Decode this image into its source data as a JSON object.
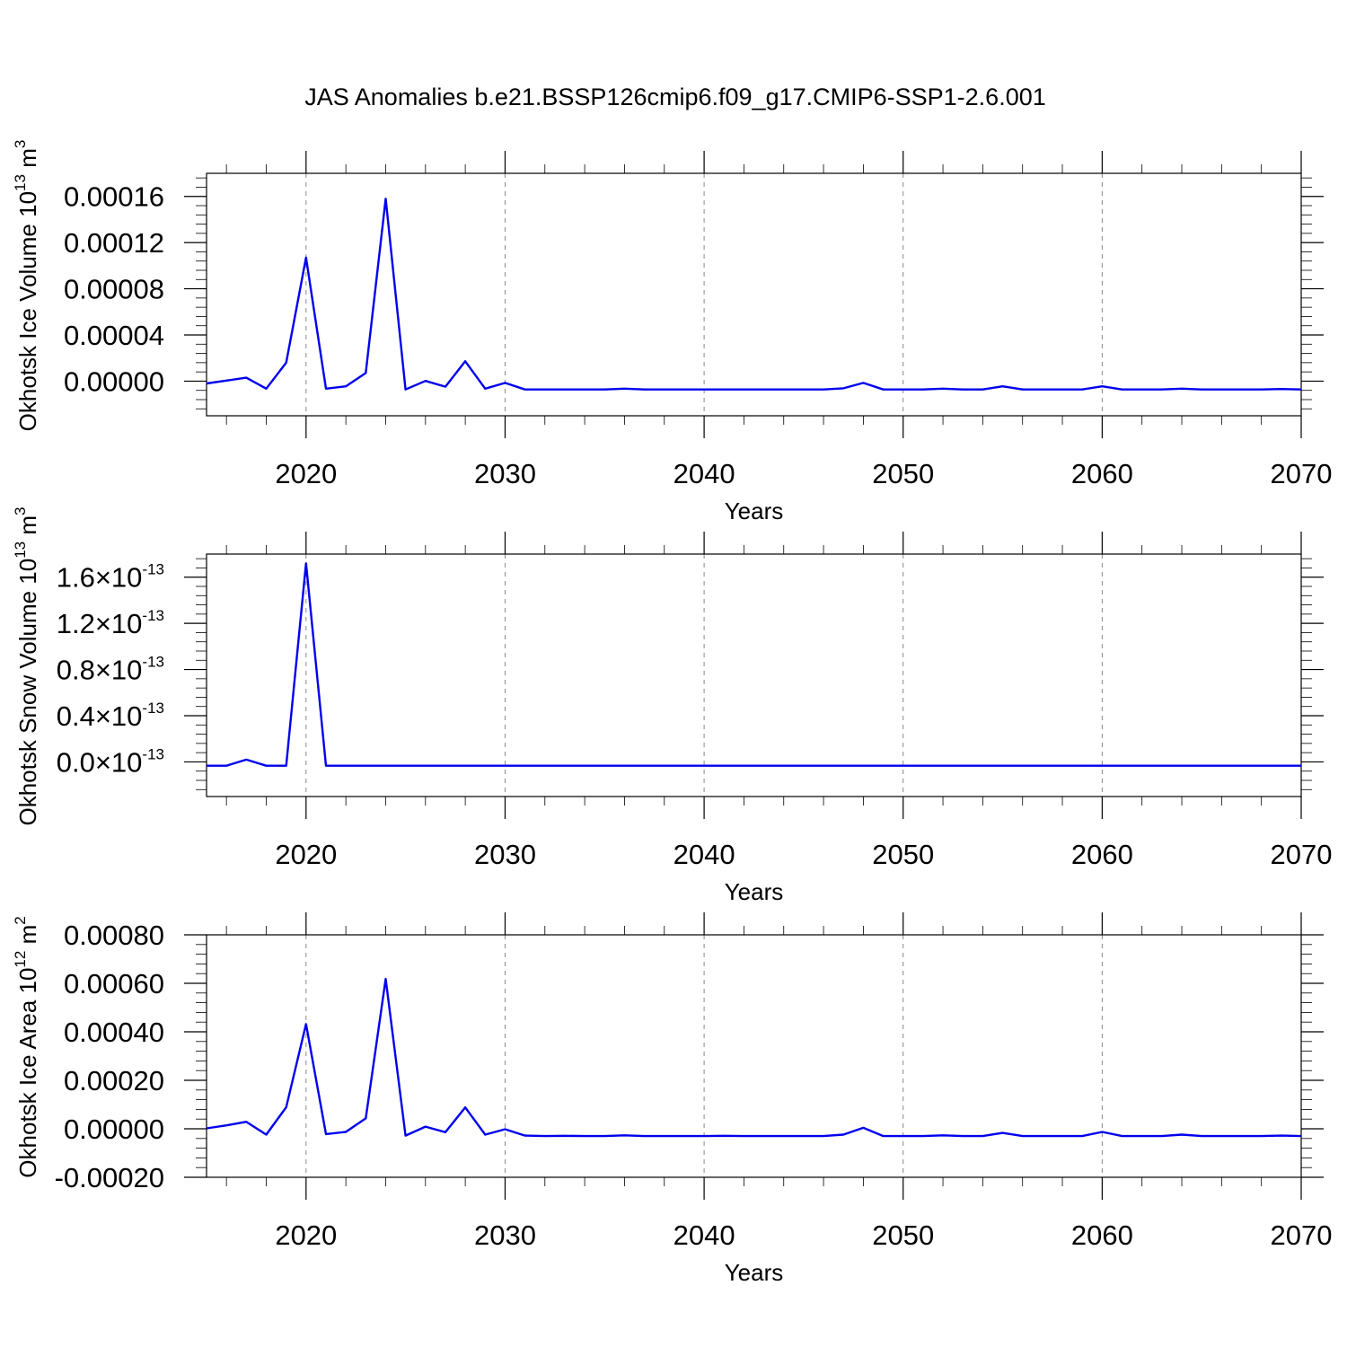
{
  "title": "JAS Anomalies b.e21.BSSP126cmip6.f09_g17.CMIP6-SSP1-2.6.001",
  "chart_data": [
    {
      "type": "line",
      "ylabel": "Okhotsk Ice Volume",
      "ylabel_power": "10",
      "ylabel_exp": "13",
      "ylabel_unit": "m",
      "ylabel_unit_exp": "3",
      "xlabel": "Years",
      "xlim": [
        2015,
        2070
      ],
      "ylim": [
        -3e-05,
        0.00018
      ],
      "x_ticks": [
        "2020",
        "2030",
        "2040",
        "2050",
        "2060",
        "2070"
      ],
      "x_tick_values": [
        2020,
        2030,
        2040,
        2050,
        2060,
        2070
      ],
      "y_ticks": [
        "0.00000",
        "0.00004",
        "0.00008",
        "0.00012",
        "0.00016"
      ],
      "y_tick_values": [
        0,
        4e-05,
        8e-05,
        0.00012,
        0.00016
      ],
      "grid": "vertical-dashed",
      "series": [
        {
          "color": "#0000ee",
          "x": [
            2015,
            2016,
            2017,
            2018,
            2019,
            2020,
            2021,
            2022,
            2023,
            2024,
            2025,
            2026,
            2027,
            2028,
            2029,
            2030,
            2031,
            2032,
            2033,
            2034,
            2035,
            2036,
            2037,
            2038,
            2039,
            2040,
            2041,
            2042,
            2043,
            2044,
            2045,
            2046,
            2047,
            2048,
            2049,
            2050,
            2051,
            2052,
            2053,
            2054,
            2055,
            2056,
            2057,
            2058,
            2059,
            2060,
            2061,
            2062,
            2063,
            2064,
            2065,
            2066,
            2067,
            2068,
            2069,
            2070
          ],
          "values": [
            -2e-06,
            5e-07,
            3e-06,
            -6.5e-06,
            1.6e-05,
            0.000107,
            -6.5e-06,
            -4.5e-06,
            7e-06,
            0.000158,
            -7.2e-06,
            2e-07,
            -4.8e-06,
            1.72e-05,
            -6.5e-06,
            -1.5e-06,
            -7.2e-06,
            -7.2e-06,
            -7.2e-06,
            -7.2e-06,
            -7.2e-06,
            -6.5e-06,
            -7.2e-06,
            -7.2e-06,
            -7.2e-06,
            -7.2e-06,
            -7.2e-06,
            -7.2e-06,
            -7.2e-06,
            -7.2e-06,
            -7.2e-06,
            -7.2e-06,
            -6.2e-06,
            -1.5e-06,
            -7.2e-06,
            -7.2e-06,
            -7.2e-06,
            -6.5e-06,
            -7.2e-06,
            -7.2e-06,
            -4.5e-06,
            -7.2e-06,
            -7.2e-06,
            -7.2e-06,
            -7.2e-06,
            -4.5e-06,
            -7.2e-06,
            -7.2e-06,
            -7.2e-06,
            -6.5e-06,
            -7.2e-06,
            -7.2e-06,
            -7.2e-06,
            -7.2e-06,
            -6.8e-06,
            -7.2e-06
          ]
        }
      ]
    },
    {
      "type": "line",
      "ylabel": "Okhotsk Snow Volume",
      "ylabel_power": "10",
      "ylabel_exp": "13",
      "ylabel_unit": "m",
      "ylabel_unit_exp": "3",
      "xlabel": "Years",
      "xlim": [
        2015,
        2070
      ],
      "ylim": [
        -3e-14,
        1.8e-13
      ],
      "x_ticks": [
        "2020",
        "2030",
        "2040",
        "2050",
        "2060",
        "2070"
      ],
      "x_tick_values": [
        2020,
        2030,
        2040,
        2050,
        2060,
        2070
      ],
      "y_ticks": [
        "0.0",
        "0.4",
        "0.8",
        "1.2",
        "1.6"
      ],
      "y_tick_values": [
        0,
        4e-14,
        8e-14,
        1.2e-13,
        1.6e-13
      ],
      "y_tick_suffix": "×10",
      "y_tick_exp": "-13",
      "grid": "vertical-dashed",
      "series": [
        {
          "color": "#0000ee",
          "x": [
            2015,
            2016,
            2017,
            2018,
            2019,
            2020,
            2021,
            2022,
            2023,
            2024,
            2025,
            2026,
            2027,
            2028,
            2029,
            2030,
            2031,
            2032,
            2033,
            2034,
            2035,
            2036,
            2037,
            2038,
            2039,
            2040,
            2041,
            2042,
            2043,
            2044,
            2045,
            2046,
            2047,
            2048,
            2049,
            2050,
            2051,
            2052,
            2053,
            2054,
            2055,
            2056,
            2057,
            2058,
            2059,
            2060,
            2061,
            2062,
            2063,
            2064,
            2065,
            2066,
            2067,
            2068,
            2069,
            2070
          ],
          "values": [
            -3.3e-15,
            -3.3e-15,
            2e-15,
            -3.3e-15,
            -3.3e-15,
            1.72e-13,
            -3.3e-15,
            -3.3e-15,
            -3.3e-15,
            -3.3e-15,
            -3.3e-15,
            -3.3e-15,
            -3.3e-15,
            -3.3e-15,
            -3.3e-15,
            -3.3e-15,
            -3.3e-15,
            -3.3e-15,
            -3.3e-15,
            -3.3e-15,
            -3.3e-15,
            -3.3e-15,
            -3.3e-15,
            -3.3e-15,
            -3.3e-15,
            -3.3e-15,
            -3.3e-15,
            -3.3e-15,
            -3.3e-15,
            -3.3e-15,
            -3.3e-15,
            -3.3e-15,
            -3.3e-15,
            -3.3e-15,
            -3.3e-15,
            -3.3e-15,
            -3.3e-15,
            -3.3e-15,
            -3.3e-15,
            -3.3e-15,
            -3.3e-15,
            -3.3e-15,
            -3.3e-15,
            -3.3e-15,
            -3.3e-15,
            -3.3e-15,
            -3.3e-15,
            -3.3e-15,
            -3.3e-15,
            -3.3e-15,
            -3.3e-15,
            -3.3e-15,
            -3.3e-15,
            -3.3e-15,
            -3.3e-15,
            -3.3e-15
          ]
        }
      ]
    },
    {
      "type": "line",
      "ylabel": "Okhotsk Ice Area",
      "ylabel_power": "10",
      "ylabel_exp": "12",
      "ylabel_unit": "m",
      "ylabel_unit_exp": "2",
      "xlabel": "Years",
      "xlim": [
        2015,
        2070
      ],
      "ylim": [
        -0.0002,
        0.0008
      ],
      "x_ticks": [
        "2020",
        "2030",
        "2040",
        "2050",
        "2060",
        "2070"
      ],
      "x_tick_values": [
        2020,
        2030,
        2040,
        2050,
        2060,
        2070
      ],
      "y_ticks": [
        "-0.00020",
        "0.00000",
        "0.00020",
        "0.00040",
        "0.00060",
        "0.00080"
      ],
      "y_tick_values": [
        -0.0002,
        0,
        0.0002,
        0.0004,
        0.0006,
        0.0008
      ],
      "grid": "vertical-dashed",
      "series": [
        {
          "color": "#0000ee",
          "x": [
            2015,
            2016,
            2017,
            2018,
            2019,
            2020,
            2021,
            2022,
            2023,
            2024,
            2025,
            2026,
            2027,
            2028,
            2029,
            2030,
            2031,
            2032,
            2033,
            2034,
            2035,
            2036,
            2037,
            2038,
            2039,
            2040,
            2041,
            2042,
            2043,
            2044,
            2045,
            2046,
            2047,
            2048,
            2049,
            2050,
            2051,
            2052,
            2053,
            2054,
            2055,
            2056,
            2057,
            2058,
            2059,
            2060,
            2061,
            2062,
            2063,
            2064,
            2065,
            2066,
            2067,
            2068,
            2069,
            2070
          ],
          "values": [
            2e-06,
            1.4e-05,
            2.9e-05,
            -2.4e-05,
            8.9e-05,
            0.000432,
            -2.2e-05,
            -1.3e-05,
            4.3e-05,
            0.000618,
            -2.8e-05,
            9e-06,
            -1.4e-05,
            8.8e-05,
            -2.4e-05,
            -2e-06,
            -2.8e-05,
            -3e-05,
            -2.9e-05,
            -3e-05,
            -3e-05,
            -2.7e-05,
            -3e-05,
            -3e-05,
            -3e-05,
            -3e-05,
            -2.9e-05,
            -3e-05,
            -3e-05,
            -3e-05,
            -3e-05,
            -3e-05,
            -2.4e-05,
            4e-06,
            -3e-05,
            -3e-05,
            -3e-05,
            -2.7e-05,
            -3e-05,
            -3e-05,
            -1.7e-05,
            -3e-05,
            -3e-05,
            -3e-05,
            -3e-05,
            -1.3e-05,
            -3e-05,
            -3e-05,
            -3e-05,
            -2.4e-05,
            -3e-05,
            -3e-05,
            -3e-05,
            -3e-05,
            -2.8e-05,
            -3e-05
          ]
        }
      ]
    }
  ]
}
